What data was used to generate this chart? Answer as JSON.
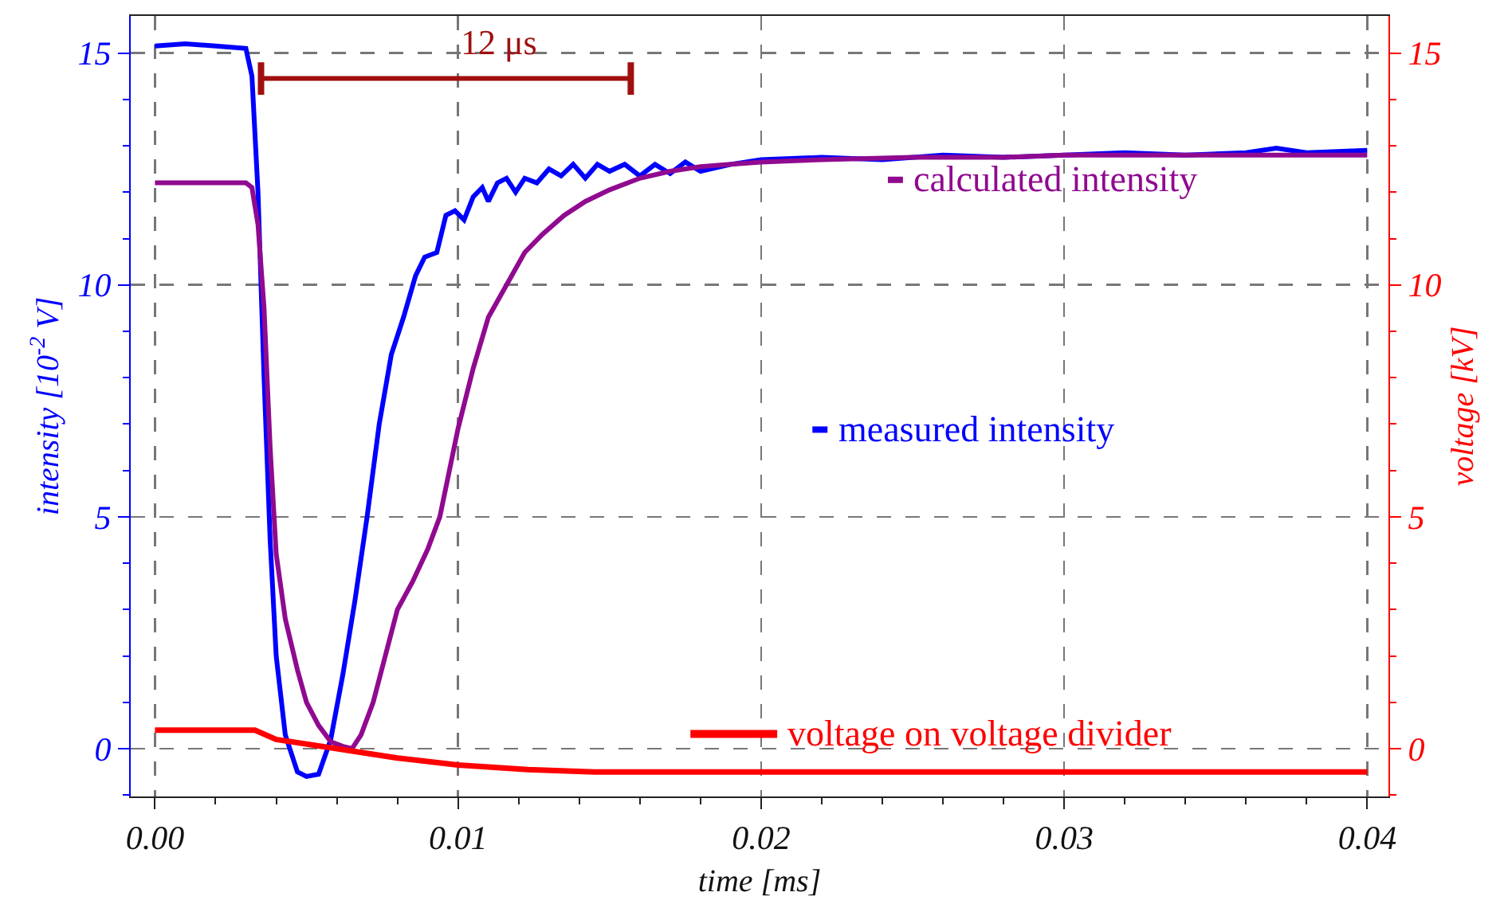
{
  "chart_data": {
    "type": "line",
    "xlabel": "time [ms]",
    "ylabel": "intensity [10$^{-2}$ V]",
    "y2label": "voltage [kV]",
    "xlim": [
      -0.0008,
      0.0407
    ],
    "xticks": [
      {
        "value": 0,
        "label": "0.00"
      },
      0.01,
      0.02,
      0.03,
      0.04
    ],
    "ylim": [
      -1.03,
      15.8
    ],
    "yticks": [
      0,
      5,
      10,
      15
    ],
    "y2lim": [
      -1.03,
      15.8
    ],
    "y2ticks": [
      0,
      5,
      10,
      15
    ],
    "grid": true,
    "legend": "right",
    "line_style": "solid",
    "annotations": [
      "12 μs"
    ],
    "series": [
      {
        "color": "#a01010",
        "x": [
          0.0035,
          0.0157
        ],
        "values": [
          14.45,
          14.45
        ],
        "errors": [
          0.35,
          0.35
        ]
      },
      {
        "name": "measured intensity",
        "color": "#0000ff",
        "x": [
          0,
          0.001,
          0.002,
          0.003,
          0.0032,
          0.0034,
          0.0036,
          0.0038,
          0.004,
          0.0043,
          0.0047,
          0.005,
          0.0054,
          0.0058,
          0.0062,
          0.0066,
          0.007,
          0.0074,
          0.0078,
          0.0082,
          0.0086,
          0.0089,
          0.0093,
          0.0096,
          0.0099,
          0.0102,
          0.0105,
          0.0108,
          0.011,
          0.0113,
          0.0116,
          0.0119,
          0.0122,
          0.0126,
          0.013,
          0.0134,
          0.0138,
          0.0142,
          0.0146,
          0.015,
          0.0155,
          0.016,
          0.0165,
          0.017,
          0.0175,
          0.018,
          0.019,
          0.02,
          0.022,
          0.024,
          0.026,
          0.028,
          0.03,
          0.032,
          0.034,
          0.036,
          0.037,
          0.038,
          0.04
        ],
        "values": [
          15.15,
          15.2,
          15.15,
          15.1,
          14.5,
          12,
          8,
          4.5,
          2,
          0.3,
          -0.5,
          -0.6,
          -0.55,
          0.2,
          1.6,
          3.2,
          5,
          7,
          8.5,
          9.3,
          10.2,
          10.6,
          10.7,
          11.5,
          11.6,
          11.4,
          11.9,
          12.1,
          11.8,
          12.2,
          12.3,
          12.0,
          12.3,
          12.2,
          12.5,
          12.35,
          12.6,
          12.3,
          12.6,
          12.45,
          12.6,
          12.35,
          12.6,
          12.4,
          12.65,
          12.45,
          12.6,
          12.7,
          12.75,
          12.7,
          12.8,
          12.75,
          12.8,
          12.85,
          12.8,
          12.85,
          12.95,
          12.85,
          12.9
        ]
      },
      {
        "name": "calculated intensity",
        "color": "#900a90",
        "x": [
          0,
          0.001,
          0.002,
          0.003,
          0.0032,
          0.0034,
          0.0036,
          0.0038,
          0.004,
          0.0043,
          0.0047,
          0.005,
          0.0054,
          0.0058,
          0.0062,
          0.0065,
          0.0068,
          0.0072,
          0.0076,
          0.008,
          0.0085,
          0.009,
          0.0094,
          0.01,
          0.0105,
          0.011,
          0.0116,
          0.0122,
          0.0128,
          0.0135,
          0.0142,
          0.015,
          0.016,
          0.017,
          0.018,
          0.019,
          0.02,
          0.022,
          0.025,
          0.028,
          0.03,
          0.033,
          0.036,
          0.04
        ],
        "values": [
          12.2,
          12.2,
          12.2,
          12.2,
          12.1,
          11.3,
          9.5,
          6.5,
          4.2,
          2.8,
          1.7,
          1.0,
          0.5,
          0.15,
          0.05,
          0,
          0.3,
          1.0,
          2.0,
          3.0,
          3.6,
          4.3,
          5.0,
          6.9,
          8.2,
          9.3,
          10.0,
          10.7,
          11.1,
          11.5,
          11.8,
          12.05,
          12.3,
          12.45,
          12.55,
          12.6,
          12.65,
          12.7,
          12.75,
          12.75,
          12.8,
          12.8,
          12.8,
          12.8
        ]
      },
      {
        "name": "voltage on voltage divider",
        "color": "#ff0000",
        "axis": "y2",
        "x": [
          0,
          0.0033,
          0.004,
          0.006,
          0.008,
          0.01,
          0.0123,
          0.0145,
          0.02,
          0.04
        ],
        "values": [
          0.4,
          0.4,
          0.2,
          0,
          -0.2,
          -0.35,
          -0.45,
          -0.5,
          -0.5,
          -0.5
        ]
      }
    ]
  }
}
